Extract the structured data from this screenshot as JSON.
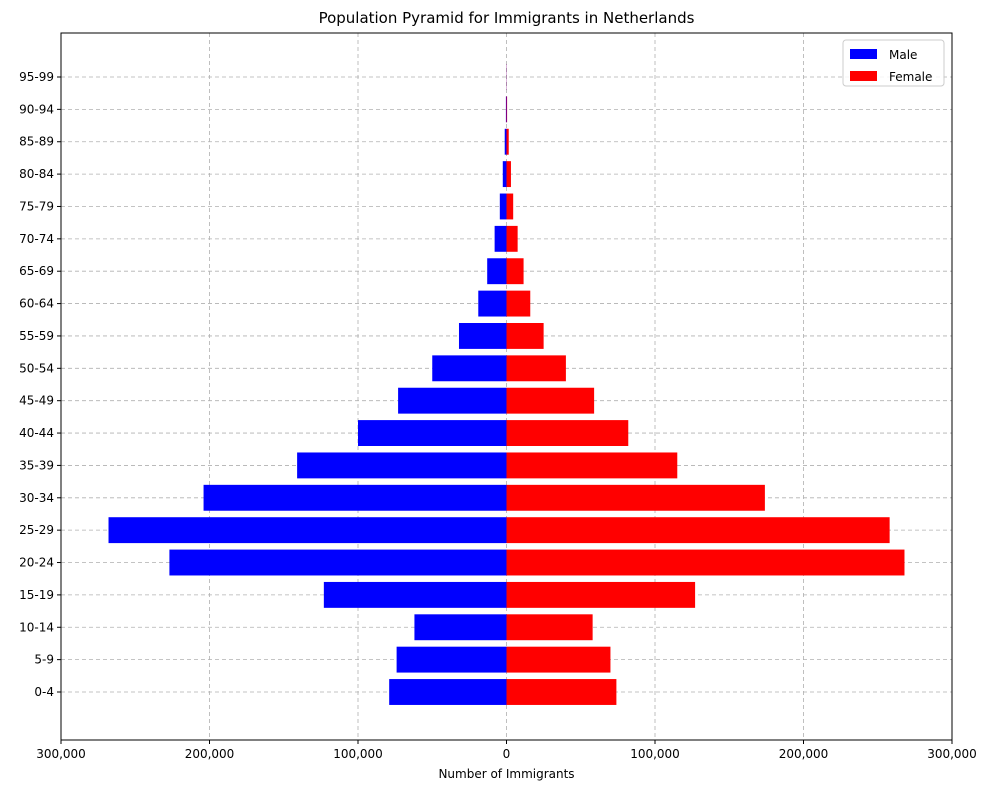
{
  "chart_data": {
    "type": "bar",
    "orientation": "horizontal",
    "title": "Population Pyramid for Immigrants in Netherlands",
    "xlabel": "Number of Immigrants",
    "ylabel": "",
    "xlim": [
      -300000,
      300000
    ],
    "x_ticks": [
      -300000,
      -200000,
      -100000,
      0,
      100000,
      200000,
      300000
    ],
    "x_tick_labels": [
      "300,000",
      "200,000",
      "100,000",
      "0",
      "100,000",
      "200,000",
      "300,000"
    ],
    "grid": true,
    "legend_position": "top-right",
    "categories": [
      "0-4",
      "5-9",
      "10-14",
      "15-19",
      "20-24",
      "25-29",
      "30-34",
      "35-39",
      "40-44",
      "45-49",
      "50-54",
      "55-59",
      "60-64",
      "65-69",
      "70-74",
      "75-79",
      "80-84",
      "85-89",
      "90-94",
      "95-99"
    ],
    "series": [
      {
        "name": "Male",
        "color": "#0000ff",
        "values": [
          -79000,
          -74000,
          -62000,
          -123000,
          -227000,
          -268000,
          -204000,
          -141000,
          -100000,
          -73000,
          -50000,
          -32000,
          -19000,
          -13000,
          -8000,
          -4500,
          -2500,
          -1200,
          -400,
          -100
        ]
      },
      {
        "name": "Female",
        "color": "#ff0000",
        "values": [
          74000,
          70000,
          58000,
          127000,
          268000,
          258000,
          174000,
          115000,
          82000,
          59000,
          40000,
          25000,
          16000,
          11500,
          7500,
          4500,
          3000,
          1500,
          400,
          100
        ]
      }
    ]
  }
}
